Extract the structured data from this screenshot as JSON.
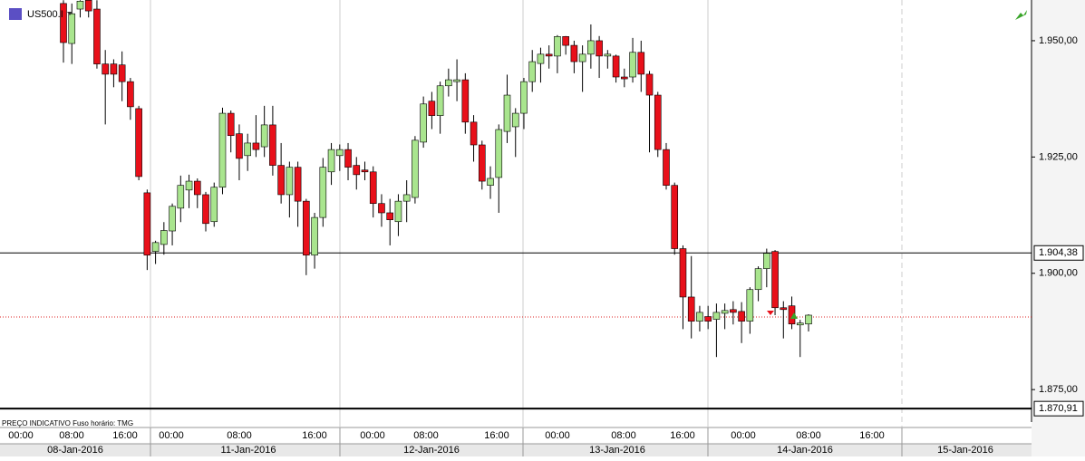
{
  "chart_data": {
    "type": "candlestick",
    "title": "US500.I",
    "footer_note": "PREÇO INDICATIVO   Fuso horário: TMG",
    "up_color": "#a9e58e",
    "down_color": "#e8101a",
    "ylim": [
      1868.8,
      1958.75
    ],
    "yticks": [
      {
        "value": 1950,
        "label": "1.950,00"
      },
      {
        "value": 1925,
        "label": "1.925,00"
      },
      {
        "value": 1900,
        "label": "1.900,00"
      },
      {
        "value": 1875,
        "label": "1.875,00"
      }
    ],
    "price_lines": [
      {
        "value": 1904.38,
        "label": "1.904,38"
      },
      {
        "value": 1870.91,
        "label": "1.870,91"
      }
    ],
    "bid_line": 1890.6,
    "time_labels": [
      "00:00",
      "08:00",
      "16:00",
      "00:00",
      "08:00",
      "16:00",
      "00:00",
      "08:00",
      "16:00",
      "00:00",
      "08:00",
      "16:00",
      "00:00",
      "08:00",
      "16:00"
    ],
    "date_labels": [
      "08-Jan-2016",
      "11-Jan-2016",
      "12-Jan-2016",
      "13-Jan-2016",
      "14-Jan-2016",
      "15-Jan-2016"
    ],
    "open": [
      1958,
      1949.4,
      1956.8,
      1958.7,
      1956.8,
      1945,
      1945,
      1944.8,
      1941.2,
      1935.4,
      1917.3,
      1904.7,
      1906.2,
      1909.1,
      1914,
      1917.9,
      1919.8,
      1916.9,
      1911.1,
      1918.5,
      1934.4,
      1930,
      1925.3,
      1928,
      1927.2,
      1931.9,
      1923.2,
      1916.9,
      1922.8,
      1915.5,
      1903.9,
      1912,
      1921.8,
      1925.3,
      1926.6,
      1923.2,
      1922.2,
      1921.8,
      1915,
      1913,
      1911.1,
      1915.5,
      1916.3,
      1928.2,
      1937,
      1933.9,
      1940.3,
      1941.2,
      1941.6,
      1932.5,
      1927.6,
      1918.9,
      1920.6,
      1930.5,
      1931.5,
      1934.4,
      1941.2,
      1945.1,
      1947.1,
      1946.7,
      1950.9,
      1949,
      1945.5,
      1947.1,
      1950,
      1946.7,
      1946.7,
      1942.2,
      1942.2,
      1947.5,
      1942.8,
      1938.3,
      1926.6,
      1918.9,
      1905.3,
      1894.9,
      1889.7,
      1890.7,
      1890.1,
      1891.4,
      1892.2,
      1891.8,
      1889.7,
      1896.5,
      1901,
      1904.7,
      1892.6,
      1893,
      1888.9,
      1889.1
    ],
    "high": [
      1958.7,
      1958,
      1958.7,
      1958.7,
      1958.7,
      1948,
      1946,
      1947.7,
      1942,
      1936,
      1918,
      1907,
      1911,
      1915,
      1921,
      1921.2,
      1920.4,
      1917.5,
      1919.5,
      1935.6,
      1935,
      1932,
      1930,
      1934,
      1936,
      1936,
      1928,
      1924,
      1924,
      1916,
      1913,
      1924.8,
      1928,
      1927.7,
      1928,
      1925,
      1924,
      1923,
      1917,
      1916,
      1917,
      1920,
      1929.5,
      1938,
      1939,
      1941.2,
      1944,
      1946,
      1943,
      1934,
      1928.5,
      1923,
      1932,
      1942.7,
      1935.5,
      1942,
      1948,
      1948.5,
      1949,
      1951.2,
      1951,
      1950,
      1949,
      1953.5,
      1951,
      1948,
      1947,
      1944,
      1950.6,
      1950,
      1943.5,
      1939,
      1928,
      1919.5,
      1906,
      1903.7,
      1893,
      1893,
      1893.5,
      1893.5,
      1894,
      1893.8,
      1897,
      1901.5,
      1905.3,
      1905,
      1894,
      1895,
      1890,
      1891.2
    ],
    "low": [
      1945.3,
      1945,
      1955,
      1955,
      1944,
      1932,
      1940,
      1937,
      1933,
      1920,
      1900.7,
      1902,
      1904,
      1906,
      1911,
      1914,
      1914,
      1909,
      1910,
      1917,
      1926,
      1920,
      1922,
      1925,
      1925,
      1921,
      1915,
      1912,
      1910,
      1899.6,
      1901,
      1910,
      1919,
      1922,
      1920,
      1918,
      1920,
      1912,
      1910,
      1906,
      1908,
      1911,
      1915,
      1927,
      1931,
      1930,
      1938,
      1937,
      1930,
      1924,
      1918,
      1916,
      1913,
      1928,
      1925,
      1931,
      1939,
      1941,
      1944,
      1943,
      1947,
      1943,
      1939,
      1944,
      1942,
      1944,
      1941,
      1940,
      1941,
      1939,
      1926,
      1925,
      1918,
      1904,
      1888,
      1886,
      1887.5,
      1888,
      1882,
      1888,
      1889,
      1885,
      1887,
      1894,
      1897,
      1891,
      1886,
      1888,
      1882,
      1887.5
    ],
    "close": [
      1949.6,
      1955.8,
      1958.5,
      1956.4,
      1945,
      1942.8,
      1942.8,
      1941.2,
      1935.8,
      1920.8,
      1903.9,
      1906.6,
      1909.2,
      1914.4,
      1918.9,
      1919.8,
      1916.9,
      1910.7,
      1918.5,
      1934.4,
      1929.6,
      1924.7,
      1928,
      1926.6,
      1931.9,
      1923.2,
      1916.9,
      1922.8,
      1915.5,
      1903.9,
      1912,
      1922.8,
      1926.6,
      1926.6,
      1922.8,
      1921.2,
      1921.8,
      1915,
      1913,
      1911.5,
      1915.5,
      1916.9,
      1928.6,
      1936.4,
      1933.9,
      1940.3,
      1941.6,
      1941.6,
      1932.5,
      1927.6,
      1919.8,
      1920.4,
      1930.9,
      1938.3,
      1934.4,
      1941.2,
      1945.5,
      1947.1,
      1946.7,
      1950.9,
      1949,
      1945.5,
      1947.1,
      1950,
      1946.7,
      1947.1,
      1942.2,
      1941.8,
      1947.5,
      1942.8,
      1938.3,
      1926.6,
      1918.9,
      1905.3,
      1894.9,
      1889.7,
      1891.6,
      1889.7,
      1891.6,
      1892,
      1891.6,
      1889.7,
      1896.5,
      1901,
      1904.3,
      1892.6,
      1892.2,
      1889.1,
      1889.3,
      1891
    ]
  }
}
